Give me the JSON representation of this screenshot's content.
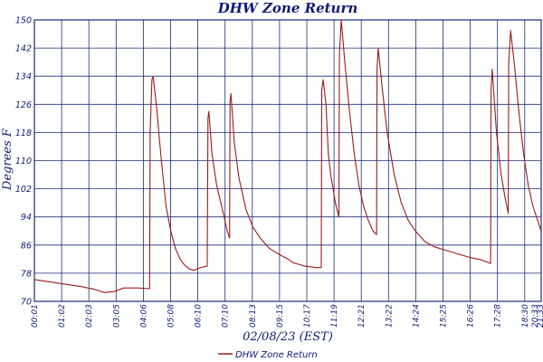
{
  "chart_data": {
    "type": "line",
    "title": "DHW Zone Return",
    "xlabel": "02/08/23 (EST)",
    "ylabel": "Degrees F",
    "ylim": [
      70,
      150
    ],
    "yticks": [
      70,
      78,
      86,
      94,
      102,
      110,
      118,
      126,
      134,
      142,
      150
    ],
    "xtick_labels": [
      "00:01",
      "01:02",
      "02:03",
      "03:05",
      "04:06",
      "05:08",
      "06:10",
      "07:10",
      "08:13",
      "09:15",
      "10:17",
      "11:19",
      "12:21",
      "13:22",
      "14:24",
      "15:25",
      "16:26",
      "17:28",
      "18:30",
      "19:32",
      "20:33",
      "21:33"
    ],
    "xlim_hours": [
      0.0,
      21.55
    ],
    "grid": true,
    "legend_position": "bottom",
    "colors": {
      "line": "#9b1b1b",
      "grid": "#1b2a7a",
      "text": "#101a7a"
    },
    "series": [
      {
        "name": "DHW Zone Return",
        "points": [
          [
            0.0,
            76.2
          ],
          [
            1.0,
            75.2
          ],
          [
            2.0,
            74.2
          ],
          [
            2.5,
            73.5
          ],
          [
            3.0,
            72.5
          ],
          [
            3.4,
            72.8
          ],
          [
            3.8,
            73.8
          ],
          [
            4.4,
            73.8
          ],
          [
            4.9,
            73.6
          ],
          [
            4.92,
            118
          ],
          [
            5.0,
            133
          ],
          [
            5.05,
            134
          ],
          [
            5.2,
            125
          ],
          [
            5.4,
            110
          ],
          [
            5.6,
            97
          ],
          [
            5.8,
            90
          ],
          [
            6.0,
            85
          ],
          [
            6.2,
            82
          ],
          [
            6.4,
            80.2
          ],
          [
            6.6,
            79.2
          ],
          [
            6.8,
            78.8
          ],
          [
            7.0,
            79.5
          ],
          [
            7.2,
            79.8
          ],
          [
            7.35,
            80
          ],
          [
            7.38,
            122
          ],
          [
            7.42,
            124
          ],
          [
            7.55,
            112
          ],
          [
            7.75,
            103
          ],
          [
            8.0,
            96
          ],
          [
            8.2,
            90
          ],
          [
            8.3,
            88
          ],
          [
            8.32,
            127
          ],
          [
            8.36,
            129
          ],
          [
            8.5,
            115
          ],
          [
            8.7,
            105
          ],
          [
            9.0,
            96
          ],
          [
            9.3,
            91
          ],
          [
            9.6,
            88
          ],
          [
            10.0,
            85
          ],
          [
            10.5,
            83
          ],
          [
            10.8,
            82
          ],
          [
            11.0,
            81
          ],
          [
            11.5,
            80
          ],
          [
            12.0,
            79.6
          ],
          [
            12.2,
            79.6
          ],
          [
            12.22,
            130
          ],
          [
            12.28,
            133
          ],
          [
            12.4,
            126
          ],
          [
            12.5,
            112
          ],
          [
            12.6,
            106
          ],
          [
            12.8,
            98
          ],
          [
            12.95,
            94
          ],
          [
            12.97,
            140
          ],
          [
            13.05,
            150
          ],
          [
            13.2,
            138
          ],
          [
            13.4,
            124
          ],
          [
            13.6,
            112
          ],
          [
            13.8,
            103
          ],
          [
            14.0,
            97
          ],
          [
            14.2,
            93
          ],
          [
            14.4,
            90
          ],
          [
            14.55,
            89
          ],
          [
            14.57,
            136
          ],
          [
            14.62,
            142
          ],
          [
            14.8,
            130
          ],
          [
            15.0,
            118
          ],
          [
            15.3,
            106
          ],
          [
            15.6,
            98
          ],
          [
            15.9,
            93
          ],
          [
            16.2,
            90
          ],
          [
            16.6,
            87
          ],
          [
            17.0,
            85.5
          ],
          [
            17.5,
            84.5
          ],
          [
            18.0,
            83.5
          ],
          [
            18.5,
            82.5
          ],
          [
            19.0,
            81.8
          ],
          [
            19.4,
            80.8
          ],
          [
            19.42,
            130
          ],
          [
            19.47,
            136
          ],
          [
            19.65,
            118
          ],
          [
            19.85,
            106
          ],
          [
            20.0,
            100
          ],
          [
            20.15,
            95
          ],
          [
            20.17,
            138
          ],
          [
            20.25,
            147
          ],
          [
            20.4,
            138
          ],
          [
            20.6,
            124
          ],
          [
            20.8,
            112
          ],
          [
            21.0,
            103
          ],
          [
            21.2,
            97
          ],
          [
            21.4,
            93
          ],
          [
            21.55,
            90
          ]
        ]
      }
    ]
  }
}
